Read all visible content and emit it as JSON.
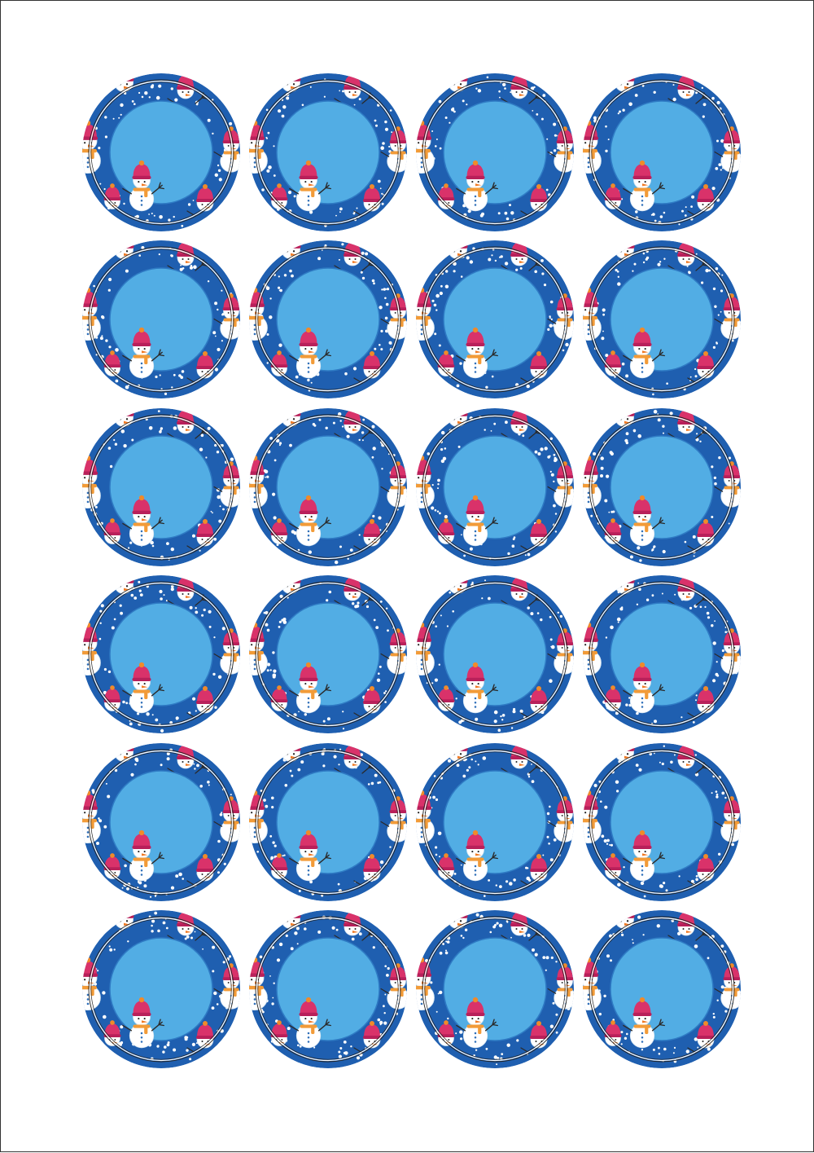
{
  "sheet": {
    "background": "#ffffff",
    "border_color": "#333333",
    "rows": 6,
    "columns": 4
  },
  "sticker": {
    "design": "snowman-round-label",
    "ring_color": "#1f5fb0",
    "center_color": "#52ade4",
    "center_outline_color": "#2f7bc4",
    "cut_line_color": "#ffffff",
    "cut_line_outline_color": "#222222",
    "snowflake_color": "#ffffff",
    "snowman_body_color": "#ffffff",
    "hat_color": "#d9326a",
    "hat_pompom_color": "#f08a2a",
    "scarf_colors": [
      "#f29b38",
      "#f6c343"
    ],
    "nose_color": "#f07a24",
    "arm_color": "#2a2a2a",
    "snowman_icons": [
      "snowman-top-left-icon",
      "snowman-top-right-icon",
      "snowman-left-icon",
      "snowman-right-icon",
      "snowman-bottom-left-icon",
      "snowman-bottom-right-icon",
      "snowman-center-icon"
    ]
  }
}
